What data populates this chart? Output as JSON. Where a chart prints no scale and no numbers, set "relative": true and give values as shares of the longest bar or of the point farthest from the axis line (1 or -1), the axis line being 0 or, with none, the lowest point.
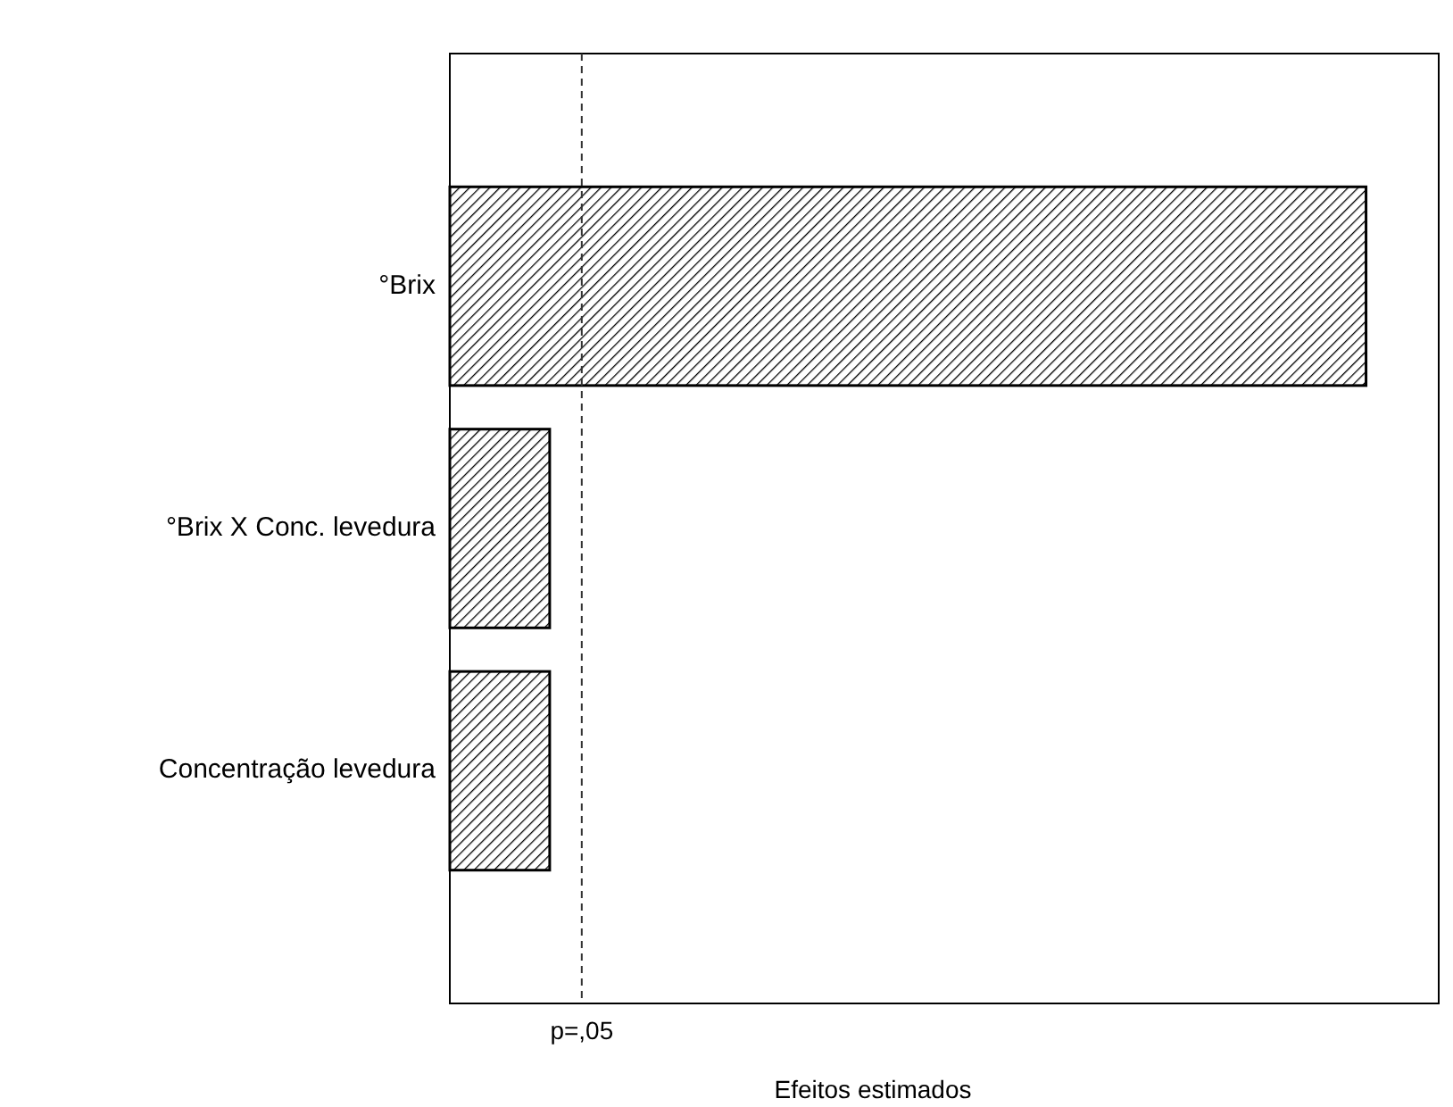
{
  "chart_data": {
    "type": "bar",
    "orientation": "horizontal",
    "relative": true,
    "xlabel": "Efeitos estimados",
    "categories": [
      "°Brix",
      "°Brix X Conc. levedura",
      "Concentração levedura"
    ],
    "values": [
      1,
      0.109,
      0.109
    ],
    "color": "#000000",
    "ref_lines": [
      {
        "axis": "x",
        "value": 0.144,
        "label": "p=,05",
        "line_style": "dashed",
        "color": "#333333"
      }
    ]
  }
}
